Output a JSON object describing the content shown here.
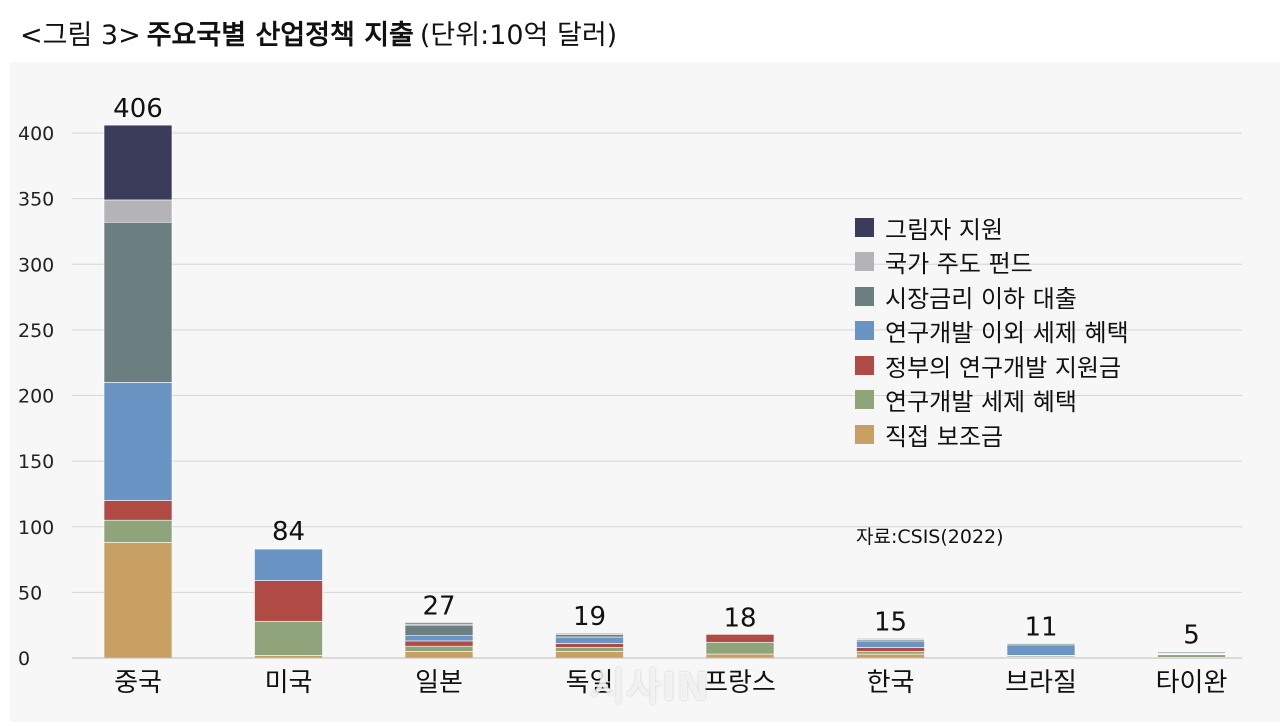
{
  "title": {
    "prefix": "<그림 3>",
    "main": "주요국별 산업정책 지출",
    "unit": "(단위:10억 달러)"
  },
  "source": "자료:CSIS(2022)",
  "watermark": "시사IN",
  "chart_data": {
    "type": "bar",
    "stacked": true,
    "categories": [
      "중국",
      "미국",
      "일본",
      "독일",
      "프랑스",
      "한국",
      "브라질",
      "타이완"
    ],
    "totals": [
      406,
      84,
      27,
      19,
      18,
      15,
      11,
      5
    ],
    "series": [
      {
        "name": "직접 보조금",
        "color": "#c9a063",
        "values": [
          88,
          2,
          5,
          5,
          3,
          3,
          0.5,
          0.5
        ]
      },
      {
        "name": "연구개발 세제 혜택",
        "color": "#8fa47a",
        "values": [
          17,
          26,
          4,
          3,
          9,
          2,
          1,
          2
        ]
      },
      {
        "name": "정부의 연구개발 지원금",
        "color": "#b04a45",
        "values": [
          15,
          31,
          4,
          3,
          6,
          3,
          0.5,
          0.5
        ]
      },
      {
        "name": "연구개발 이외 세제 혜택",
        "color": "#6a94c3",
        "values": [
          90,
          24,
          4,
          5,
          0,
          5,
          8,
          0.5
        ]
      },
      {
        "name": "시장금리 이하 대출",
        "color": "#6c7f80",
        "values": [
          122,
          0,
          8,
          2,
          0,
          1,
          1,
          1
        ]
      },
      {
        "name": "국가 주도 펀드",
        "color": "#b3b3b8",
        "values": [
          17,
          0,
          1,
          1,
          0,
          1,
          0,
          0.5
        ]
      },
      {
        "name": "그림자 지원",
        "color": "#3b3c5a",
        "values": [
          57,
          0,
          1,
          0,
          0,
          0,
          0,
          0
        ]
      }
    ],
    "legend_order": [
      "그림자 지원",
      "국가 주도 펀드",
      "시장금리 이하 대출",
      "연구개발 이외 세제 혜택",
      "정부의 연구개발 지원금",
      "연구개발 세제 혜택",
      "직접 보조금"
    ],
    "legend_position": "upper-right",
    "yticks": [
      0,
      50,
      100,
      150,
      200,
      250,
      300,
      350,
      400
    ],
    "ylim": [
      0,
      420
    ],
    "grid": true
  }
}
